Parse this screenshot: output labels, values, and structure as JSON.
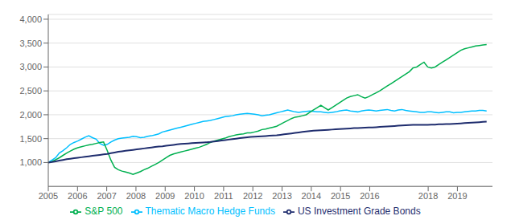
{
  "chart_data": {
    "type": "line",
    "x": [
      2005,
      2005.1261,
      2005.2521,
      2005.3782,
      2005.5042,
      2005.6303,
      2005.7563,
      2005.8824,
      2006.0084,
      2006.1345,
      2006.2605,
      2006.3866,
      2006.5126,
      2006.6387,
      2006.7647,
      2006.8908,
      2007.0168,
      2007.1429,
      2007.2689,
      2007.395,
      2007.521,
      2007.6471,
      2007.7731,
      2007.8992,
      2008.0252,
      2008.1513,
      2008.2773,
      2008.4034,
      2008.5294,
      2008.6555,
      2008.7815,
      2008.9076,
      2009.0336,
      2009.1597,
      2009.2857,
      2009.4118,
      2009.5378,
      2009.6639,
      2009.7899,
      2009.916,
      2010.042,
      2010.1681,
      2010.2941,
      2010.4202,
      2010.5462,
      2010.6723,
      2010.7983,
      2010.9244,
      2011.0504,
      2011.1765,
      2011.3025,
      2011.4286,
      2011.5546,
      2011.6807,
      2011.8067,
      2011.9328,
      2012.0588,
      2012.1849,
      2012.3109,
      2012.437,
      2012.563,
      2012.6891,
      2012.8151,
      2012.9412,
      2013.0672,
      2013.1933,
      2013.3193,
      2013.4454,
      2013.5714,
      2013.6975,
      2013.8235,
      2013.9496,
      2014.0756,
      2014.2017,
      2014.3277,
      2014.4538,
      2014.5798,
      2014.7059,
      2014.8319,
      2014.958,
      2015.084,
      2015.2101,
      2015.3361,
      2015.4622,
      2015.5882,
      2015.7143,
      2015.8403,
      2015.9664,
      2016.0924,
      2016.2185,
      2016.3445,
      2016.4706,
      2016.5966,
      2016.7227,
      2016.8487,
      2016.9748,
      2017.1008,
      2017.2269,
      2017.3529,
      2017.479,
      2017.605,
      2017.7311,
      2017.8571,
      2017.9832,
      2018.1092,
      2018.2353,
      2018.3613,
      2018.4874,
      2018.6134,
      2018.7395,
      2018.8655,
      2018.9916,
      2019.1176,
      2019.2437,
      2019.3697,
      2019.4958,
      2019.6218,
      2019.7479,
      2019.8739,
      2020
    ],
    "series": [
      {
        "name": "Thematic Macro Hedge Funds",
        "color": "#00BFFF",
        "values": [
          1000,
          1050,
          1100,
          1200,
          1250,
          1310,
          1380,
          1420,
          1450,
          1490,
          1530,
          1560,
          1520,
          1490,
          1400,
          1360,
          1380,
          1430,
          1470,
          1500,
          1510,
          1520,
          1530,
          1550,
          1540,
          1520,
          1530,
          1550,
          1560,
          1580,
          1600,
          1640,
          1660,
          1680,
          1700,
          1720,
          1740,
          1760,
          1780,
          1800,
          1820,
          1840,
          1860,
          1870,
          1880,
          1900,
          1920,
          1940,
          1960,
          1970,
          1980,
          2000,
          2010,
          2020,
          2030,
          2020,
          2010,
          2000,
          1980,
          1990,
          2000,
          2020,
          2040,
          2060,
          2080,
          2100,
          2080,
          2060,
          2050,
          2060,
          2070,
          2080,
          2070,
          2060,
          2060,
          2050,
          2040,
          2050,
          2060,
          2080,
          2090,
          2100,
          2080,
          2070,
          2060,
          2080,
          2090,
          2100,
          2090,
          2080,
          2090,
          2100,
          2110,
          2090,
          2080,
          2100,
          2110,
          2090,
          2080,
          2070,
          2060,
          2050,
          2050,
          2060,
          2060,
          2050,
          2040,
          2050,
          2060,
          2060,
          2040,
          2050,
          2050,
          2060,
          2070,
          2080,
          2080,
          2090,
          2090,
          2080
        ]
      },
      {
        "name": "S&P 500",
        "color": "#00B050",
        "values": [
          1000,
          1020,
          1060,
          1100,
          1150,
          1200,
          1240,
          1280,
          1310,
          1330,
          1350,
          1370,
          1380,
          1400,
          1420,
          1430,
          1250,
          1050,
          900,
          850,
          820,
          800,
          780,
          750,
          780,
          810,
          850,
          880,
          920,
          960,
          1000,
          1050,
          1100,
          1150,
          1180,
          1200,
          1220,
          1240,
          1260,
          1280,
          1300,
          1320,
          1350,
          1380,
          1420,
          1450,
          1470,
          1490,
          1510,
          1540,
          1560,
          1580,
          1590,
          1600,
          1620,
          1620,
          1640,
          1660,
          1690,
          1700,
          1720,
          1740,
          1760,
          1800,
          1840,
          1880,
          1920,
          1950,
          1960,
          1980,
          2000,
          2050,
          2100,
          2150,
          2200,
          2150,
          2100,
          2150,
          2200,
          2250,
          2300,
          2350,
          2380,
          2400,
          2420,
          2380,
          2350,
          2380,
          2420,
          2460,
          2500,
          2550,
          2600,
          2650,
          2700,
          2750,
          2800,
          2850,
          2900,
          2980,
          3000,
          3050,
          3100,
          3000,
          2980,
          3000,
          3050,
          3100,
          3150,
          3200,
          3250,
          3300,
          3350,
          3380,
          3400,
          3420,
          3440,
          3450,
          3460,
          3470
        ]
      },
      {
        "name": "US Investment Grade Bonds",
        "color": "#1F2D6E",
        "values": [
          1000,
          1010,
          1025,
          1040,
          1055,
          1070,
          1080,
          1090,
          1100,
          1110,
          1120,
          1130,
          1140,
          1150,
          1160,
          1170,
          1180,
          1195,
          1210,
          1225,
          1235,
          1245,
          1255,
          1265,
          1275,
          1285,
          1295,
          1305,
          1315,
          1325,
          1335,
          1340,
          1350,
          1360,
          1370,
          1380,
          1390,
          1395,
          1400,
          1405,
          1410,
          1415,
          1420,
          1425,
          1430,
          1440,
          1450,
          1460,
          1470,
          1480,
          1490,
          1500,
          1510,
          1520,
          1530,
          1535,
          1540,
          1545,
          1550,
          1555,
          1560,
          1565,
          1570,
          1580,
          1590,
          1600,
          1610,
          1620,
          1630,
          1640,
          1650,
          1660,
          1665,
          1670,
          1675,
          1680,
          1685,
          1690,
          1695,
          1700,
          1705,
          1710,
          1715,
          1720,
          1720,
          1725,
          1730,
          1735,
          1735,
          1740,
          1745,
          1750,
          1755,
          1760,
          1765,
          1770,
          1775,
          1780,
          1785,
          1790,
          1790,
          1790,
          1790,
          1790,
          1795,
          1795,
          1800,
          1800,
          1805,
          1805,
          1810,
          1815,
          1820,
          1825,
          1830,
          1835,
          1840,
          1845,
          1850,
          1855
        ]
      }
    ],
    "xlim": [
      2005,
      2020.2
    ],
    "xticks": [
      2005,
      2006,
      2007,
      2008,
      2009,
      2010,
      2011,
      2012,
      2013,
      2014,
      2015,
      2016,
      2018,
      2019
    ],
    "ylim": [
      500,
      4100
    ],
    "yticks": [
      {
        "value": 1000,
        "label": "1,000"
      },
      {
        "value": 1500,
        "label": "1,500"
      },
      {
        "value": 2000,
        "label": "2,000"
      },
      {
        "value": 2500,
        "label": "2,500"
      },
      {
        "value": 3000,
        "label": "3,000"
      },
      {
        "value": 3500,
        "label": "3,500"
      },
      {
        "value": 4000,
        "label": "4,000"
      }
    ],
    "grid": "y",
    "legend": "bottom"
  }
}
